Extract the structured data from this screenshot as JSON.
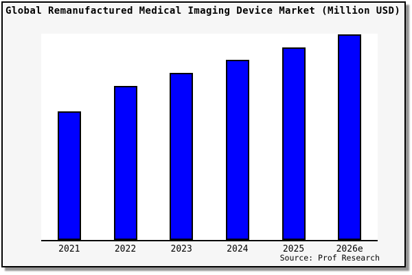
{
  "title": "Global Remanufactured Medical Imaging Device Market (Million USD)",
  "source": "Source: Prof Research",
  "colors": {
    "bar_fill": "#0000ff",
    "bar_border": "#000000",
    "axis": "#000000",
    "plot_background": "#ffffff",
    "figure_background": "#f6f6f6",
    "frame_border": "#000000",
    "shadow": "#949494",
    "text": "#000000"
  },
  "chart_data": {
    "type": "bar",
    "title": "Global Remanufactured Medical Imaging Device Market (Million USD)",
    "categories": [
      "2021",
      "2022",
      "2023",
      "2024",
      "2025",
      "2026e"
    ],
    "values": [
      62.5,
      74.9,
      81.3,
      87.6,
      93.6,
      100
    ],
    "value_note": "Chart shows no y-axis ticks or data labels; values are relative bar heights estimated from pixels, normalized so 2026e = 100.",
    "xlabel": "",
    "ylabel": "",
    "ylim": [
      0,
      100
    ],
    "grid": false,
    "y_axis_visible": false,
    "legend": null,
    "bar_color": "#0000ff",
    "source": "Source: Prof Research"
  }
}
